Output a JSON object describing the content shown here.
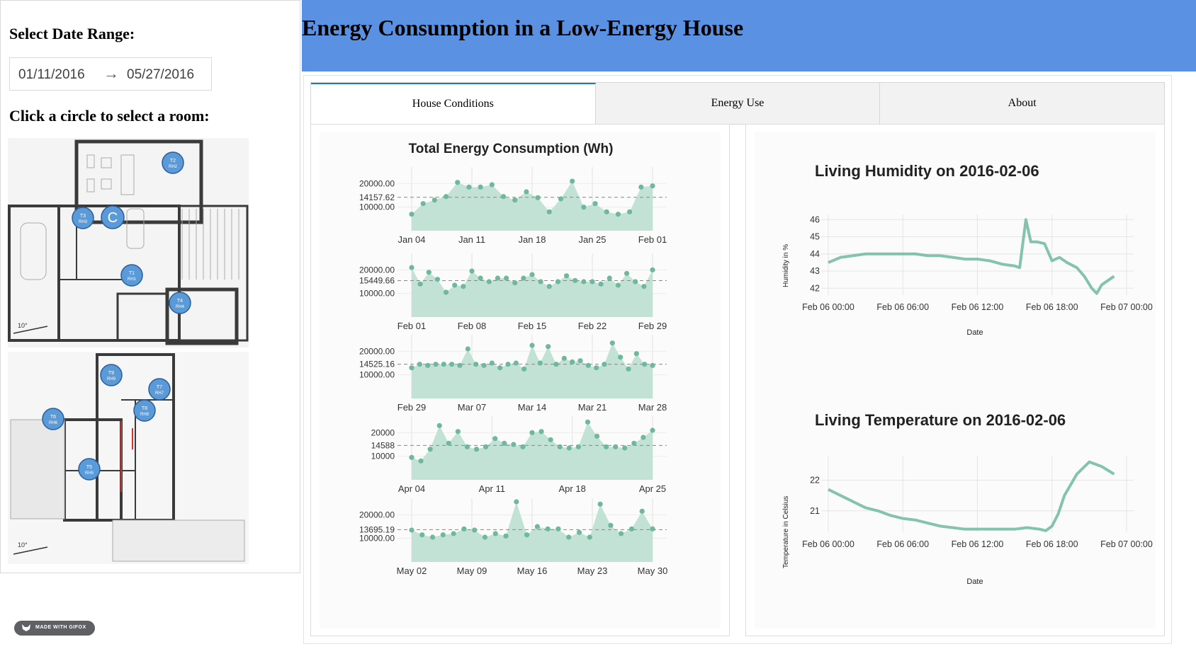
{
  "sidebar": {
    "date_range_heading": "Select Date Range:",
    "date_start": "01/11/2016",
    "date_arrow": "→",
    "date_end": "05/27/2016",
    "room_heading": "Click a circle to select a room:",
    "rooms": [
      {
        "top": "T2",
        "bottom": "RH2"
      },
      {
        "top": "T3",
        "bottom": "RH3"
      },
      {
        "top": "C",
        "bottom": ""
      },
      {
        "top": "T1",
        "bottom": "RH1"
      },
      {
        "top": "T4",
        "bottom": "RH4"
      },
      {
        "top": "T9",
        "bottom": "RH9"
      },
      {
        "top": "T7",
        "bottom": "RH7"
      },
      {
        "top": "T8",
        "bottom": "RH8"
      },
      {
        "top": "T6",
        "bottom": "RH6"
      },
      {
        "top": "T5",
        "bottom": "RH5"
      }
    ],
    "compass_label_1": "10°",
    "compass_label_2": "10°",
    "made_with": "MADE WITH GIFOX"
  },
  "banner": {
    "title": "Energy Consumption in a Low-Energy House"
  },
  "tabs": [
    {
      "label": "House Conditions",
      "active": true
    },
    {
      "label": "Energy Use",
      "active": false
    },
    {
      "label": "About",
      "active": false
    }
  ],
  "colors": {
    "accent": "#5b91e3",
    "tab_active": "#1f76d6",
    "series": "#6fb89e",
    "area": "#bfe0d4"
  },
  "chart_data": [
    {
      "type": "area",
      "title": "Total Energy Consumption (Wh)",
      "rows": [
        {
          "mean_label": "14157.62",
          "mean": 14157.62,
          "ticks_y": [
            "20000.00",
            "10000.00"
          ],
          "ticks_x": [
            "Jan 04",
            "Jan 11",
            "Jan 18",
            "Jan 25",
            "Feb 01"
          ],
          "values": [
            7000,
            11500,
            13000,
            14500,
            20500,
            18500,
            18500,
            19500,
            14500,
            13000,
            16500,
            14000,
            8000,
            13500,
            21000,
            10000,
            11500,
            8000,
            7000,
            8000,
            18500,
            19000
          ]
        },
        {
          "mean_label": "15449.66",
          "mean": 15449.66,
          "ticks_y": [
            "20000.00",
            "10000.00"
          ],
          "ticks_x": [
            "Feb 01",
            "Feb 08",
            "Feb 15",
            "Feb 22",
            "Feb 29"
          ],
          "values": [
            21000,
            14000,
            19000,
            16000,
            10500,
            13500,
            13000,
            19500,
            16500,
            15000,
            16500,
            16500,
            14500,
            16500,
            18000,
            15000,
            13000,
            15000,
            17500,
            15500,
            15000,
            15000,
            14000,
            16500,
            13500,
            18500,
            15000,
            13000,
            20000
          ]
        },
        {
          "mean_label": "14525.16",
          "mean": 14525.16,
          "ticks_y": [
            "20000.00",
            "10000.00"
          ],
          "ticks_x": [
            "Feb 29",
            "Mar 07",
            "Mar 14",
            "Mar 21",
            "Mar 28"
          ],
          "values": [
            13000,
            14500,
            14000,
            14500,
            14500,
            14500,
            14000,
            21000,
            14500,
            14000,
            15000,
            13000,
            14500,
            15000,
            12500,
            22500,
            15000,
            22000,
            14500,
            17000,
            15500,
            16000,
            14000,
            13000,
            14500,
            23500,
            17500,
            12500,
            19000,
            14500,
            14000
          ]
        },
        {
          "mean_label": "14588",
          "mean": 14588,
          "ticks_y": [
            "20000",
            "10000"
          ],
          "ticks_x": [
            "Apr 04",
            "Apr 11",
            "Apr 18",
            "Apr 25"
          ],
          "values": [
            9500,
            8000,
            13000,
            23000,
            15500,
            20500,
            14000,
            13000,
            14000,
            17500,
            15500,
            15000,
            14000,
            20000,
            20500,
            17000,
            14000,
            13500,
            14000,
            24500,
            18500,
            14000,
            14000,
            13500,
            15500,
            18000,
            21000
          ]
        },
        {
          "mean_label": "13695.19",
          "mean": 13695.19,
          "ticks_y": [
            "20000.00",
            "10000.00"
          ],
          "ticks_x": [
            "May 02",
            "May 09",
            "May 16",
            "May 23",
            "May 30"
          ],
          "values": [
            13500,
            11500,
            10500,
            11500,
            12000,
            14000,
            13500,
            10500,
            12000,
            11000,
            25500,
            11500,
            15000,
            14000,
            14000,
            10500,
            12500,
            10500,
            24500,
            15500,
            12000,
            14000,
            21500,
            14000
          ]
        }
      ]
    },
    {
      "type": "line",
      "title": "Living Humidity on 2016-02-06",
      "xlabel": "Date",
      "ylabel": "Humidity in %",
      "ylim": [
        41.6,
        46.3
      ],
      "ticks_y": [
        "46",
        "45",
        "44",
        "43",
        "42"
      ],
      "ticks_x": [
        "Feb 06 00:00",
        "Feb 06 06:00",
        "Feb 06 12:00",
        "Feb 06 18:00",
        "Feb 07 00:00"
      ],
      "x": [
        0,
        1,
        2,
        3,
        4,
        5,
        6,
        7,
        8,
        9,
        10,
        11,
        12,
        13,
        14,
        15,
        15.4,
        15.9,
        16.3,
        16.8,
        17.4,
        18,
        18.6,
        19.2,
        20,
        20.6,
        21.2,
        21.6,
        22,
        23
      ],
      "y": [
        43.5,
        43.8,
        43.9,
        44.0,
        44.0,
        44.0,
        44.0,
        44.0,
        43.9,
        43.9,
        43.8,
        43.7,
        43.7,
        43.6,
        43.4,
        43.3,
        43.2,
        46.0,
        44.7,
        44.7,
        44.6,
        43.6,
        43.8,
        43.5,
        43.2,
        42.7,
        42.0,
        41.7,
        42.2,
        42.7
      ]
    },
    {
      "type": "line",
      "title": "Living Temperature on 2016-02-06",
      "xlabel": "Date",
      "ylabel": "Temperature in Celsius",
      "ylim": [
        20.3,
        22.8
      ],
      "ticks_y": [
        "22",
        "21"
      ],
      "ticks_x": [
        "Feb 06 00:00",
        "Feb 06 06:00",
        "Feb 06 12:00",
        "Feb 06 18:00",
        "Feb 07 00:00"
      ],
      "x": [
        0,
        1,
        2,
        3,
        4,
        5,
        6,
        7,
        8,
        9,
        10,
        11,
        12,
        13,
        14,
        15,
        16,
        17,
        17.5,
        18,
        18.5,
        19,
        20,
        21,
        22,
        23
      ],
      "y": [
        21.7,
        21.5,
        21.3,
        21.1,
        21.0,
        20.85,
        20.75,
        20.7,
        20.6,
        20.5,
        20.45,
        20.4,
        20.4,
        20.4,
        20.4,
        20.4,
        20.45,
        20.4,
        20.35,
        20.5,
        20.9,
        21.5,
        22.2,
        22.6,
        22.45,
        22.2
      ]
    }
  ]
}
